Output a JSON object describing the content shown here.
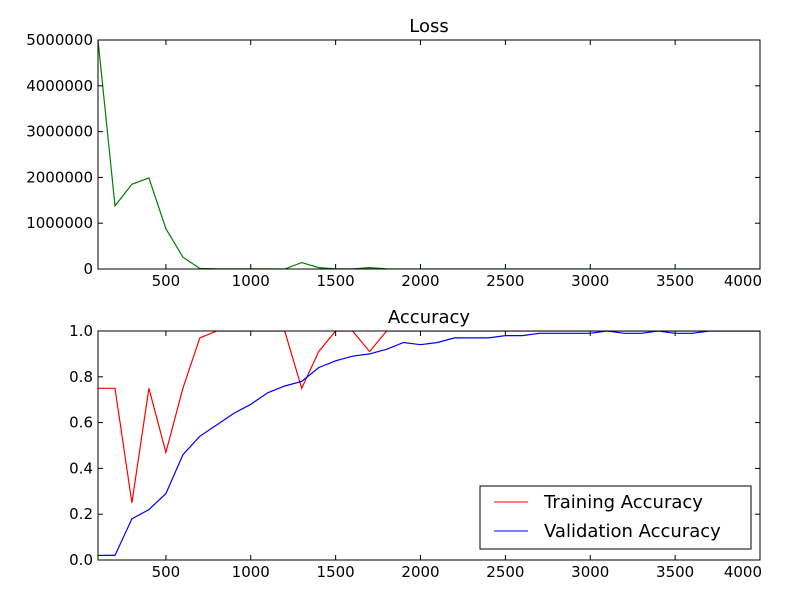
{
  "chart_data": [
    {
      "type": "line",
      "title": "Loss",
      "xlim": [
        100,
        4000
      ],
      "ylim": [
        0,
        5000000
      ],
      "xticks": [
        "500",
        "1000",
        "1500",
        "2000",
        "2500",
        "3000",
        "3500",
        "4000"
      ],
      "xtick_values": [
        500,
        1000,
        1500,
        2000,
        2500,
        3000,
        3500,
        4000
      ],
      "yticks": [
        "0",
        "1000000",
        "2000000",
        "3000000",
        "4000000",
        "5000000"
      ],
      "ytick_values": [
        0,
        1000000,
        2000000,
        3000000,
        4000000,
        5000000
      ],
      "grid": false,
      "series": [
        {
          "color": "#008000",
          "x": [
            100,
            200,
            300,
            400,
            500,
            600,
            700,
            800,
            900,
            1000,
            1100,
            1200,
            1300,
            1400,
            1500,
            1600,
            1700,
            1800,
            1900,
            2000,
            2100,
            2200,
            2300,
            2400,
            2500,
            2600,
            2700,
            2800,
            2900,
            3000,
            3100,
            3200,
            3300,
            3400,
            3500,
            3600,
            3700,
            3800,
            3900,
            4000
          ],
          "y": [
            5000000,
            1380000,
            1850000,
            1990000,
            880000,
            260000,
            10000,
            5000,
            3000,
            2000,
            2000,
            1000,
            140000,
            30000,
            3000,
            2000,
            30000,
            5000,
            1000,
            500,
            500,
            500,
            500,
            500,
            500,
            500,
            500,
            500,
            500,
            500,
            500,
            500,
            500,
            500,
            500,
            500,
            500,
            500,
            500,
            500
          ]
        }
      ]
    },
    {
      "type": "line",
      "title": "Accuracy",
      "xlim": [
        100,
        4000
      ],
      "ylim": [
        0,
        1
      ],
      "xticks": [
        "500",
        "1000",
        "1500",
        "2000",
        "2500",
        "3000",
        "3500",
        "4000"
      ],
      "xtick_values": [
        500,
        1000,
        1500,
        2000,
        2500,
        3000,
        3500,
        4000
      ],
      "yticks": [
        "0.0",
        "0.2",
        "0.4",
        "0.6",
        "0.8",
        "1.0"
      ],
      "ytick_values": [
        0,
        0.2,
        0.4,
        0.6,
        0.8,
        1.0
      ],
      "grid": false,
      "legend_position": "lower-right",
      "series": [
        {
          "name": "Training Accuracy",
          "color": "#ff0000",
          "x": [
            100,
            200,
            300,
            400,
            500,
            600,
            700,
            800,
            900,
            1000,
            1100,
            1200,
            1300,
            1400,
            1500,
            1600,
            1700,
            1800,
            1900,
            2000,
            2100,
            2200,
            2300,
            2400,
            2500,
            2600,
            2700,
            2800,
            2900,
            3000,
            3100,
            3200,
            3300,
            3400,
            3500,
            3600,
            3700,
            3800,
            3900,
            4000
          ],
          "y": [
            0.75,
            0.75,
            0.25,
            0.75,
            0.47,
            0.75,
            0.97,
            1.0,
            1.0,
            1.0,
            1.0,
            1.0,
            0.75,
            0.91,
            1.0,
            1.0,
            0.91,
            1.0,
            1.0,
            1.0,
            1.0,
            1.0,
            1.0,
            1.0,
            1.0,
            1.0,
            1.0,
            1.0,
            1.0,
            1.0,
            1.0,
            1.0,
            1.0,
            1.0,
            1.0,
            1.0,
            1.0,
            1.0,
            1.0,
            1.0
          ]
        },
        {
          "name": "Validation Accuracy",
          "color": "#0000ff",
          "x": [
            100,
            200,
            300,
            400,
            500,
            600,
            700,
            800,
            900,
            1000,
            1100,
            1200,
            1300,
            1400,
            1500,
            1600,
            1700,
            1800,
            1900,
            2000,
            2100,
            2200,
            2300,
            2400,
            2500,
            2600,
            2700,
            2800,
            2900,
            3000,
            3100,
            3200,
            3300,
            3400,
            3500,
            3600,
            3700,
            3800,
            3900,
            4000
          ],
          "y": [
            0.02,
            0.02,
            0.18,
            0.22,
            0.29,
            0.46,
            0.54,
            0.59,
            0.64,
            0.68,
            0.73,
            0.76,
            0.78,
            0.84,
            0.87,
            0.89,
            0.9,
            0.92,
            0.95,
            0.94,
            0.95,
            0.97,
            0.97,
            0.97,
            0.98,
            0.98,
            0.99,
            0.99,
            0.99,
            0.99,
            1.0,
            0.99,
            0.99,
            1.0,
            0.99,
            0.99,
            1.0,
            1.0,
            1.0,
            1.0
          ]
        }
      ]
    }
  ]
}
